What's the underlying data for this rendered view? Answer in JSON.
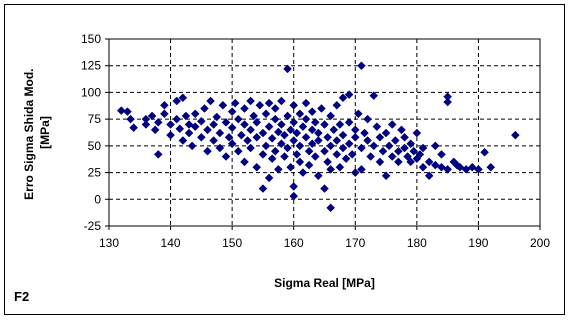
{
  "chart_data": {
    "type": "scatter",
    "xlabel": "Sigma Real [MPa]",
    "ylabel_line1": "Erro Sigma Shida Mod.",
    "ylabel_line2": "[MPa]",
    "panel_label": "F2",
    "xlim": [
      130,
      200
    ],
    "ylim": [
      -25,
      150
    ],
    "xticks": [
      130,
      140,
      150,
      160,
      170,
      180,
      190,
      200
    ],
    "yticks": [
      -25,
      0,
      25,
      50,
      75,
      100,
      125,
      150
    ],
    "grid": true,
    "legend": "none",
    "marker": "diamond",
    "color": "#000080",
    "points": [
      [
        132,
        83
      ],
      [
        133,
        82
      ],
      [
        133.5,
        75
      ],
      [
        134,
        67
      ],
      [
        136,
        75
      ],
      [
        136,
        70
      ],
      [
        137,
        78
      ],
      [
        137.5,
        65
      ],
      [
        138,
        42
      ],
      [
        138,
        72
      ],
      [
        139,
        88
      ],
      [
        139,
        80
      ],
      [
        140,
        70
      ],
      [
        140,
        60
      ],
      [
        141,
        92
      ],
      [
        141,
        75
      ],
      [
        141.5,
        66
      ],
      [
        142,
        95
      ],
      [
        142,
        55
      ],
      [
        142.5,
        78
      ],
      [
        143,
        62
      ],
      [
        143,
        70
      ],
      [
        143.5,
        50
      ],
      [
        144,
        80
      ],
      [
        144,
        68
      ],
      [
        145,
        58
      ],
      [
        145,
        73
      ],
      [
        145.5,
        85
      ],
      [
        146,
        45
      ],
      [
        146,
        65
      ],
      [
        146.5,
        92
      ],
      [
        147,
        55
      ],
      [
        147,
        70
      ],
      [
        147.5,
        77
      ],
      [
        148,
        48
      ],
      [
        148,
        62
      ],
      [
        148.5,
        88
      ],
      [
        149,
        72
      ],
      [
        149,
        40
      ],
      [
        149.5,
        58
      ],
      [
        150,
        82
      ],
      [
        150,
        67
      ],
      [
        150,
        52
      ],
      [
        150.5,
        90
      ],
      [
        151,
        45
      ],
      [
        151,
        75
      ],
      [
        151.5,
        60
      ],
      [
        152,
        35
      ],
      [
        152,
        85
      ],
      [
        152,
        70
      ],
      [
        152.5,
        55
      ],
      [
        153,
        92
      ],
      [
        153,
        48
      ],
      [
        153,
        65
      ],
      [
        153.5,
        78
      ],
      [
        154,
        30
      ],
      [
        154,
        58
      ],
      [
        154,
        72
      ],
      [
        154.5,
        88
      ],
      [
        155,
        42
      ],
      [
        155,
        10
      ],
      [
        155,
        62
      ],
      [
        155.5,
        80
      ],
      [
        155.5,
        50
      ],
      [
        156,
        20
      ],
      [
        156,
        68
      ],
      [
        156,
        90
      ],
      [
        156.5,
        38
      ],
      [
        156.5,
        57
      ],
      [
        157,
        75
      ],
      [
        157,
        45
      ],
      [
        157,
        85
      ],
      [
        157.5,
        28
      ],
      [
        157.5,
        63
      ],
      [
        158,
        52
      ],
      [
        158,
        70
      ],
      [
        158,
        92
      ],
      [
        158.5,
        40
      ],
      [
        158.5,
        60
      ],
      [
        159,
        122
      ],
      [
        159,
        78
      ],
      [
        159,
        48
      ],
      [
        159.5,
        65
      ],
      [
        159.5,
        30
      ],
      [
        160,
        3
      ],
      [
        160,
        12
      ],
      [
        160,
        55
      ],
      [
        160,
        72
      ],
      [
        160,
        88
      ],
      [
        160.5,
        42
      ],
      [
        160.5,
        62
      ],
      [
        161,
        80
      ],
      [
        161,
        35
      ],
      [
        161,
        50
      ],
      [
        161.5,
        68
      ],
      [
        161.5,
        25
      ],
      [
        162,
        58
      ],
      [
        162,
        75
      ],
      [
        162,
        90
      ],
      [
        162.5,
        45
      ],
      [
        162.5,
        32
      ],
      [
        163,
        65
      ],
      [
        163,
        52
      ],
      [
        163,
        82
      ],
      [
        163.5,
        40
      ],
      [
        163.5,
        72
      ],
      [
        164,
        22
      ],
      [
        164,
        55
      ],
      [
        164,
        62
      ],
      [
        164.5,
        85
      ],
      [
        165,
        10
      ],
      [
        165,
        45
      ],
      [
        165,
        70
      ],
      [
        165.5,
        35
      ],
      [
        165.5,
        58
      ],
      [
        166,
        -8
      ],
      [
        166,
        28
      ],
      [
        166,
        50
      ],
      [
        166,
        78
      ],
      [
        166.5,
        65
      ],
      [
        167,
        42
      ],
      [
        167,
        55
      ],
      [
        167,
        88
      ],
      [
        167.5,
        30
      ],
      [
        167.5,
        70
      ],
      [
        168,
        95
      ],
      [
        168,
        48
      ],
      [
        168,
        60
      ],
      [
        168.5,
        38
      ],
      [
        169,
        98
      ],
      [
        169,
        52
      ],
      [
        169,
        72
      ],
      [
        169.5,
        42
      ],
      [
        170,
        25
      ],
      [
        170,
        58
      ],
      [
        170,
        65
      ],
      [
        170.5,
        80
      ],
      [
        171,
        125
      ],
      [
        171,
        48
      ],
      [
        171,
        28
      ],
      [
        171.5,
        62
      ],
      [
        172,
        55
      ],
      [
        172,
        75
      ],
      [
        172.5,
        40
      ],
      [
        173,
        50
      ],
      [
        173,
        97
      ],
      [
        173.5,
        68
      ],
      [
        174,
        35
      ],
      [
        174,
        58
      ],
      [
        174.5,
        45
      ],
      [
        175,
        22
      ],
      [
        175,
        62
      ],
      [
        175.5,
        50
      ],
      [
        176,
        40
      ],
      [
        176,
        70
      ],
      [
        176.5,
        55
      ],
      [
        177,
        45
      ],
      [
        177,
        35
      ],
      [
        177.5,
        65
      ],
      [
        178,
        48
      ],
      [
        178,
        58
      ],
      [
        178.5,
        40
      ],
      [
        179,
        35
      ],
      [
        179,
        52
      ],
      [
        179.5,
        45
      ],
      [
        180,
        38
      ],
      [
        180,
        62
      ],
      [
        180.5,
        42
      ],
      [
        181,
        30
      ],
      [
        181,
        48
      ],
      [
        182,
        35
      ],
      [
        182,
        22
      ],
      [
        183,
        32
      ],
      [
        183,
        50
      ],
      [
        184,
        30
      ],
      [
        184,
        42
      ],
      [
        185,
        96
      ],
      [
        185,
        91
      ],
      [
        185,
        28
      ],
      [
        186,
        35
      ],
      [
        186.5,
        32
      ],
      [
        187,
        30
      ],
      [
        188,
        28
      ],
      [
        189,
        30
      ],
      [
        190,
        28
      ],
      [
        191,
        44
      ],
      [
        192,
        30
      ],
      [
        196,
        60
      ]
    ]
  }
}
